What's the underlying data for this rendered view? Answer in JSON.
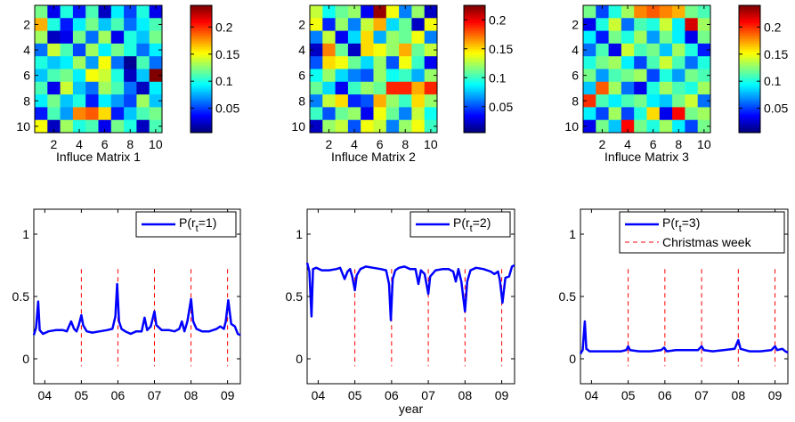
{
  "chart_data": [
    {
      "type": "heatmap",
      "xlabel": "Influce Matrix 1",
      "xticks": [
        "2",
        "4",
        "6",
        "8",
        "10"
      ],
      "yticks": [
        "2",
        "4",
        "6",
        "8",
        "10"
      ],
      "colorbar_ticks": [
        "0.05",
        "0.1",
        "0.15",
        "0.2"
      ],
      "colorbar_tick_values": [
        0.05,
        0.1,
        0.15,
        0.2
      ],
      "clim": [
        0.005,
        0.24
      ],
      "colormap": "jet",
      "values": [
        [
          0.12,
          0.03,
          0.1,
          0.04,
          0.11,
          0.02,
          0.09,
          0.05,
          0.1,
          0.03
        ],
        [
          0.17,
          0.1,
          0.04,
          0.09,
          0.12,
          0.08,
          0.11,
          0.06,
          0.09,
          0.11
        ],
        [
          0.13,
          0.02,
          0.03,
          0.12,
          0.06,
          0.13,
          0.03,
          0.1,
          0.08,
          0.12
        ],
        [
          0.06,
          0.14,
          0.11,
          0.05,
          0.13,
          0.09,
          0.12,
          0.1,
          0.06,
          0.09
        ],
        [
          0.1,
          0.08,
          0.09,
          0.13,
          0.07,
          0.15,
          0.06,
          0.01,
          0.11,
          0.06
        ],
        [
          0.08,
          0.11,
          0.12,
          0.09,
          0.15,
          0.14,
          0.1,
          0.02,
          0.08,
          0.24
        ],
        [
          0.11,
          0.03,
          0.14,
          0.08,
          0.06,
          0.13,
          0.11,
          0.06,
          0.02,
          0.09
        ],
        [
          0.09,
          0.12,
          0.08,
          0.1,
          0.04,
          0.09,
          0.07,
          0.05,
          0.13,
          0.08
        ],
        [
          0.04,
          0.11,
          0.07,
          0.18,
          0.19,
          0.16,
          0.04,
          0.08,
          0.11,
          0.12
        ],
        [
          0.15,
          0.02,
          0.13,
          0.1,
          0.11,
          0.03,
          0.12,
          0.1,
          0.02,
          0.11
        ]
      ]
    },
    {
      "type": "heatmap",
      "xlabel": "Influce Matrix 2",
      "xticks": [
        "2",
        "4",
        "6",
        "8",
        "10"
      ],
      "yticks": [
        "2",
        "4",
        "6",
        "8",
        "10"
      ],
      "colorbar_ticks": [
        "0.05",
        "0.1",
        "0.15",
        "0.2"
      ],
      "colorbar_tick_values": [
        0.05,
        0.1,
        0.15,
        0.2
      ],
      "clim": [
        0.005,
        0.225
      ],
      "colormap": "jet",
      "values": [
        [
          0.13,
          0.09,
          0.11,
          0.12,
          0.03,
          0.22,
          0.14,
          0.06,
          0.12,
          0.02
        ],
        [
          0.14,
          0.04,
          0.12,
          0.06,
          0.13,
          0.16,
          0.08,
          0.11,
          0.02,
          0.14
        ],
        [
          0.06,
          0.13,
          0.03,
          0.08,
          0.15,
          0.07,
          0.12,
          0.11,
          0.14,
          0.06
        ],
        [
          0.02,
          0.17,
          0.11,
          0.02,
          0.15,
          0.14,
          0.12,
          0.16,
          0.11,
          0.13
        ],
        [
          0.05,
          0.15,
          0.14,
          0.11,
          0.08,
          0.12,
          0.05,
          0.14,
          0.1,
          0.03
        ],
        [
          0.09,
          0.12,
          0.08,
          0.06,
          0.05,
          0.12,
          0.09,
          0.1,
          0.07,
          0.12
        ],
        [
          0.11,
          0.08,
          0.03,
          0.1,
          0.12,
          0.11,
          0.19,
          0.19,
          0.16,
          0.19
        ],
        [
          0.06,
          0.13,
          0.15,
          0.04,
          0.05,
          0.16,
          0.12,
          0.1,
          0.15,
          0.12
        ],
        [
          0.1,
          0.05,
          0.11,
          0.12,
          0.03,
          0.14,
          0.11,
          0.06,
          0.13,
          0.09
        ],
        [
          0.02,
          0.12,
          0.13,
          0.05,
          0.14,
          0.13,
          0.06,
          0.12,
          0.14,
          0.1
        ]
      ]
    },
    {
      "type": "heatmap",
      "xlabel": "Influce Matrix 3",
      "xticks": [
        "2",
        "4",
        "6",
        "8",
        "10"
      ],
      "yticks": [
        "2",
        "4",
        "6",
        "8",
        "10"
      ],
      "colorbar_ticks": [
        "0.05",
        "0.1",
        "0.15",
        "0.2"
      ],
      "colorbar_tick_values": [
        0.05,
        0.1,
        0.15,
        0.2
      ],
      "clim": [
        0.005,
        0.24
      ],
      "colormap": "jet",
      "values": [
        [
          0.12,
          0.05,
          0.1,
          0.13,
          0.18,
          0.19,
          0.18,
          0.17,
          0.12,
          0.11
        ],
        [
          0.03,
          0.1,
          0.14,
          0.06,
          0.11,
          0.1,
          0.14,
          0.09,
          0.22,
          0.13
        ],
        [
          0.09,
          0.04,
          0.12,
          0.1,
          0.13,
          0.07,
          0.12,
          0.09,
          0.03,
          0.12
        ],
        [
          0.06,
          0.11,
          0.03,
          0.14,
          0.11,
          0.12,
          0.08,
          0.13,
          0.1,
          0.04
        ],
        [
          0.1,
          0.12,
          0.13,
          0.09,
          0.05,
          0.11,
          0.14,
          0.11,
          0.06,
          0.1
        ],
        [
          0.12,
          0.07,
          0.11,
          0.12,
          0.13,
          0.05,
          0.1,
          0.07,
          0.12,
          0.11
        ],
        [
          0.08,
          0.19,
          0.13,
          0.06,
          0.03,
          0.1,
          0.13,
          0.11,
          0.1,
          0.13
        ],
        [
          0.2,
          0.11,
          0.09,
          0.11,
          0.12,
          0.09,
          0.08,
          0.12,
          0.14,
          0.06
        ],
        [
          0.09,
          0.05,
          0.13,
          0.05,
          0.1,
          0.16,
          0.03,
          0.21,
          0.12,
          0.13
        ],
        [
          0.03,
          0.12,
          0.08,
          0.21,
          0.12,
          0.1,
          0.13,
          0.09,
          0.05,
          0.12
        ]
      ]
    },
    {
      "type": "line",
      "xlabel": "",
      "xticks": [
        "04",
        "05",
        "06",
        "07",
        "08",
        "09"
      ],
      "xtick_values": [
        2004,
        2005,
        2006,
        2007,
        2008,
        2009
      ],
      "yticks": [
        "0",
        "0.5",
        "1"
      ],
      "ytick_values": [
        0,
        0.5,
        1
      ],
      "xlim": [
        2003.7,
        2009.35
      ],
      "ylim": [
        -0.2,
        1.2
      ],
      "christmas_weeks": [
        2005,
        2006,
        2007,
        2008,
        2009
      ],
      "series": [
        {
          "name": "P(r",
          "name_sub": "t",
          "name_tail": "=1)",
          "color": "#0000ff",
          "points": [
            [
              2003.7,
              0.19
            ],
            [
              2003.76,
              0.25
            ],
            [
              2003.82,
              0.46
            ],
            [
              2003.86,
              0.23
            ],
            [
              2003.95,
              0.2
            ],
            [
              2004.1,
              0.22
            ],
            [
              2004.3,
              0.23
            ],
            [
              2004.5,
              0.23
            ],
            [
              2004.6,
              0.22
            ],
            [
              2004.72,
              0.3
            ],
            [
              2004.8,
              0.24
            ],
            [
              2004.87,
              0.22
            ],
            [
              2004.93,
              0.27
            ],
            [
              2005.0,
              0.35
            ],
            [
              2005.05,
              0.27
            ],
            [
              2005.15,
              0.22
            ],
            [
              2005.3,
              0.21
            ],
            [
              2005.5,
              0.22
            ],
            [
              2005.7,
              0.23
            ],
            [
              2005.85,
              0.24
            ],
            [
              2005.93,
              0.34
            ],
            [
              2005.98,
              0.6
            ],
            [
              2006.03,
              0.3
            ],
            [
              2006.1,
              0.24
            ],
            [
              2006.2,
              0.22
            ],
            [
              2006.35,
              0.2
            ],
            [
              2006.5,
              0.22
            ],
            [
              2006.65,
              0.22
            ],
            [
              2006.73,
              0.33
            ],
            [
              2006.8,
              0.23
            ],
            [
              2006.9,
              0.26
            ],
            [
              2007.0,
              0.38
            ],
            [
              2007.05,
              0.27
            ],
            [
              2007.2,
              0.23
            ],
            [
              2007.4,
              0.23
            ],
            [
              2007.55,
              0.22
            ],
            [
              2007.68,
              0.24
            ],
            [
              2007.75,
              0.3
            ],
            [
              2007.82,
              0.22
            ],
            [
              2007.9,
              0.3
            ],
            [
              2008.0,
              0.48
            ],
            [
              2008.06,
              0.3
            ],
            [
              2008.15,
              0.24
            ],
            [
              2008.3,
              0.22
            ],
            [
              2008.5,
              0.22
            ],
            [
              2008.7,
              0.24
            ],
            [
              2008.8,
              0.26
            ],
            [
              2008.9,
              0.24
            ],
            [
              2008.95,
              0.3
            ],
            [
              2009.02,
              0.47
            ],
            [
              2009.1,
              0.28
            ],
            [
              2009.2,
              0.26
            ],
            [
              2009.28,
              0.2
            ],
            [
              2009.35,
              0.19
            ]
          ]
        }
      ]
    },
    {
      "type": "line",
      "xlabel": "year",
      "xticks": [
        "04",
        "05",
        "06",
        "07",
        "08",
        "09"
      ],
      "xtick_values": [
        2004,
        2005,
        2006,
        2007,
        2008,
        2009
      ],
      "yticks": [
        "0",
        "0.5",
        "1"
      ],
      "ytick_values": [
        0,
        0.5,
        1
      ],
      "xlim": [
        2003.7,
        2009.35
      ],
      "ylim": [
        -0.2,
        1.2
      ],
      "christmas_weeks": [
        2005,
        2006,
        2007,
        2008,
        2009
      ],
      "series": [
        {
          "name": "P(r",
          "name_sub": "t",
          "name_tail": "=2)",
          "color": "#0000ff",
          "points": [
            [
              2003.7,
              0.77
            ],
            [
              2003.76,
              0.7
            ],
            [
              2003.82,
              0.34
            ],
            [
              2003.86,
              0.72
            ],
            [
              2003.95,
              0.73
            ],
            [
              2004.1,
              0.71
            ],
            [
              2004.3,
              0.71
            ],
            [
              2004.5,
              0.72
            ],
            [
              2004.6,
              0.73
            ],
            [
              2004.72,
              0.64
            ],
            [
              2004.8,
              0.7
            ],
            [
              2004.87,
              0.72
            ],
            [
              2004.93,
              0.66
            ],
            [
              2005.0,
              0.55
            ],
            [
              2005.05,
              0.67
            ],
            [
              2005.15,
              0.72
            ],
            [
              2005.3,
              0.74
            ],
            [
              2005.5,
              0.73
            ],
            [
              2005.7,
              0.72
            ],
            [
              2005.85,
              0.71
            ],
            [
              2005.93,
              0.6
            ],
            [
              2005.98,
              0.31
            ],
            [
              2006.03,
              0.64
            ],
            [
              2006.1,
              0.71
            ],
            [
              2006.2,
              0.73
            ],
            [
              2006.35,
              0.74
            ],
            [
              2006.5,
              0.72
            ],
            [
              2006.65,
              0.72
            ],
            [
              2006.73,
              0.6
            ],
            [
              2006.8,
              0.71
            ],
            [
              2006.9,
              0.68
            ],
            [
              2007.0,
              0.52
            ],
            [
              2007.05,
              0.66
            ],
            [
              2007.2,
              0.71
            ],
            [
              2007.4,
              0.72
            ],
            [
              2007.55,
              0.72
            ],
            [
              2007.68,
              0.7
            ],
            [
              2007.75,
              0.62
            ],
            [
              2007.82,
              0.72
            ],
            [
              2007.9,
              0.62
            ],
            [
              2008.0,
              0.38
            ],
            [
              2008.06,
              0.62
            ],
            [
              2008.15,
              0.71
            ],
            [
              2008.3,
              0.73
            ],
            [
              2008.5,
              0.72
            ],
            [
              2008.7,
              0.7
            ],
            [
              2008.8,
              0.68
            ],
            [
              2008.9,
              0.7
            ],
            [
              2008.95,
              0.63
            ],
            [
              2009.02,
              0.45
            ],
            [
              2009.1,
              0.65
            ],
            [
              2009.2,
              0.66
            ],
            [
              2009.28,
              0.74
            ],
            [
              2009.35,
              0.75
            ]
          ]
        }
      ]
    },
    {
      "type": "line",
      "xlabel": "",
      "xticks": [
        "04",
        "05",
        "06",
        "07",
        "08",
        "09"
      ],
      "xtick_values": [
        2004,
        2005,
        2006,
        2007,
        2008,
        2009
      ],
      "yticks": [
        "0",
        "0.5",
        "1"
      ],
      "ytick_values": [
        0,
        0.5,
        1
      ],
      "xlim": [
        2003.7,
        2009.35
      ],
      "ylim": [
        -0.2,
        1.2
      ],
      "christmas_weeks": [
        2005,
        2006,
        2007,
        2008,
        2009
      ],
      "series": [
        {
          "name": "P(r",
          "name_sub": "t",
          "name_tail": "=3)",
          "color": "#0000ff",
          "points": [
            [
              2003.7,
              0.04
            ],
            [
              2003.76,
              0.07
            ],
            [
              2003.82,
              0.3
            ],
            [
              2003.86,
              0.08
            ],
            [
              2003.95,
              0.06
            ],
            [
              2004.2,
              0.06
            ],
            [
              2004.5,
              0.06
            ],
            [
              2004.8,
              0.06
            ],
            [
              2004.95,
              0.07
            ],
            [
              2005.0,
              0.1
            ],
            [
              2005.05,
              0.07
            ],
            [
              2005.3,
              0.06
            ],
            [
              2005.6,
              0.06
            ],
            [
              2005.9,
              0.07
            ],
            [
              2005.98,
              0.09
            ],
            [
              2006.05,
              0.06
            ],
            [
              2006.3,
              0.07
            ],
            [
              2006.6,
              0.07
            ],
            [
              2006.9,
              0.07
            ],
            [
              2007.0,
              0.1
            ],
            [
              2007.06,
              0.07
            ],
            [
              2007.3,
              0.06
            ],
            [
              2007.6,
              0.07
            ],
            [
              2007.9,
              0.08
            ],
            [
              2008.0,
              0.15
            ],
            [
              2008.06,
              0.08
            ],
            [
              2008.3,
              0.06
            ],
            [
              2008.6,
              0.06
            ],
            [
              2008.9,
              0.07
            ],
            [
              2009.0,
              0.1
            ],
            [
              2009.06,
              0.07
            ],
            [
              2009.2,
              0.08
            ],
            [
              2009.28,
              0.06
            ],
            [
              2009.35,
              0.05
            ]
          ]
        },
        {
          "name": "Christmas week",
          "color": "#ff0000",
          "style": "dashed"
        }
      ]
    }
  ]
}
